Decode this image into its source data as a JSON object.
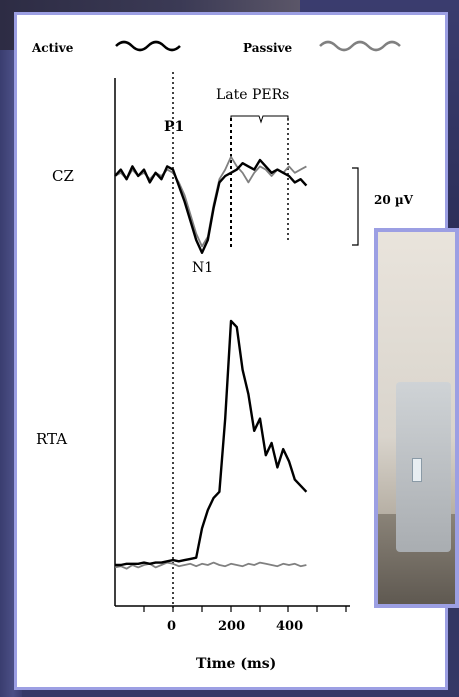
{
  "legend": {
    "active_label": "Active",
    "passive_label": "Passive",
    "active_color": "#000000",
    "passive_color": "#808080"
  },
  "labels": {
    "late_pers": "Late PERs",
    "p1": "P1",
    "n1": "N1",
    "cz": "CZ",
    "rta": "RTA",
    "scale": "20 µV"
  },
  "chart_data": [
    {
      "type": "line",
      "panel": "CZ",
      "x": [
        -200,
        -180,
        -160,
        -140,
        -120,
        -100,
        -80,
        -60,
        -40,
        -20,
        0,
        20,
        40,
        60,
        80,
        100,
        120,
        140,
        160,
        180,
        200,
        220,
        240,
        260,
        280,
        300,
        320,
        340,
        360,
        380,
        400,
        420,
        440,
        460
      ],
      "series": [
        {
          "name": "Active",
          "values": [
            0,
            2,
            -1,
            3,
            0,
            2,
            -2,
            1,
            -1,
            3,
            2,
            -3,
            -8,
            -14,
            -20,
            -24,
            -20,
            -10,
            -2,
            0,
            1,
            2,
            4,
            3,
            2,
            5,
            3,
            1,
            2,
            1,
            0,
            -2,
            -1,
            -3
          ]
        },
        {
          "name": "Passive",
          "values": [
            0,
            1,
            -1,
            2,
            0,
            1,
            -1,
            1,
            0,
            2,
            1,
            -2,
            -6,
            -12,
            -18,
            -22,
            -19,
            -9,
            -1,
            2,
            6,
            3,
            1,
            -2,
            1,
            3,
            2,
            0,
            2,
            1,
            3,
            1,
            2,
            3
          ]
        }
      ]
    },
    {
      "type": "line",
      "panel": "RTA",
      "x": [
        -200,
        -180,
        -160,
        -140,
        -120,
        -100,
        -80,
        -60,
        -40,
        -20,
        0,
        20,
        40,
        60,
        80,
        100,
        120,
        140,
        160,
        180,
        200,
        220,
        240,
        260,
        280,
        300,
        320,
        340,
        360,
        380,
        400,
        420,
        440,
        460
      ],
      "series": [
        {
          "name": "Active",
          "values": [
            0,
            0,
            1,
            1,
            1,
            2,
            1,
            2,
            2,
            3,
            4,
            3,
            4,
            5,
            6,
            30,
            45,
            55,
            60,
            120,
            200,
            195,
            160,
            140,
            110,
            120,
            90,
            100,
            80,
            95,
            85,
            70,
            65,
            60
          ]
        },
        {
          "name": "Passive",
          "values": [
            -2,
            -1,
            -3,
            0,
            -2,
            0,
            1,
            -2,
            0,
            2,
            1,
            -1,
            0,
            1,
            -1,
            1,
            0,
            2,
            0,
            -1,
            1,
            0,
            -1,
            1,
            0,
            2,
            1,
            0,
            -1,
            1,
            0,
            1,
            -1,
            0
          ]
        }
      ]
    }
  ],
  "x_axis": {
    "ticks": [
      "0",
      "200",
      "400"
    ],
    "label": "Time (ms)"
  }
}
